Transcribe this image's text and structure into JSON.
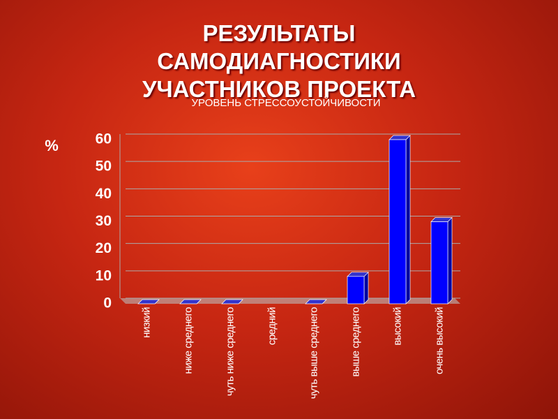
{
  "title": "РЕЗУЛЬТАТЫ САМОДИАГНОСТИКИ УЧАСТНИКОВ ПРОЕКТА",
  "chart_data": {
    "type": "bar",
    "title": "УРОВЕНЬ СТРЕССОУСТОЙЧИВОСТИ",
    "y_label": "%",
    "categories": [
      "низкий",
      "ниже среднего",
      "чуть ниже среднего",
      "средний",
      "чуть выше среднего",
      "выше среднего",
      "высокий",
      "очень высокий"
    ],
    "values": [
      0,
      0,
      0,
      null,
      0,
      10,
      60,
      30
    ],
    "color": "#0000ff",
    "ylim": [
      0,
      60
    ],
    "yticks": [
      0,
      10,
      20,
      30,
      40,
      50,
      60
    ],
    "grid": true
  }
}
